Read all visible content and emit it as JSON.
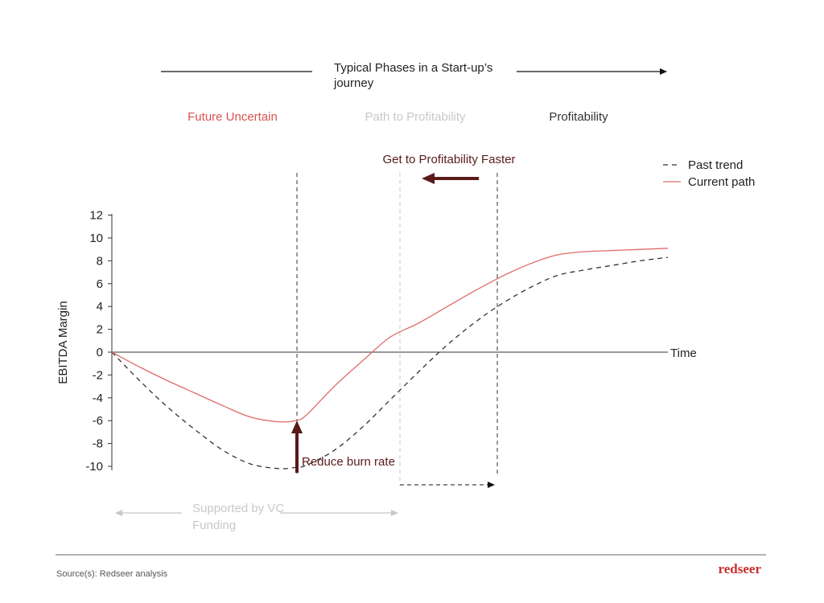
{
  "header": {
    "title_line1": "Typical Phases in a Start-up’s",
    "title_line2": "journey"
  },
  "phases": [
    {
      "label": "Future Uncertain",
      "color": "#d9534f"
    },
    {
      "label": "Path to Profitability",
      "color": "#c8c8c8"
    },
    {
      "label": "Profitability",
      "color": "#333333"
    }
  ],
  "annotations": {
    "faster": "Get to Profitability Faster",
    "burn": "Reduce burn rate",
    "vc_line1": "Supported by VC",
    "vc_line2": "Funding"
  },
  "footer": {
    "source": "Source(s): Redseer analysis",
    "brand": "redseer"
  },
  "colors": {
    "current": "#e06b6b",
    "past": "#333333",
    "accent_dark": "#5a1a1a",
    "muted": "#c8c8c8",
    "brand": "#c9302c"
  },
  "chart_data": {
    "type": "line",
    "title": "",
    "xlabel": "Time",
    "ylabel": "EBITDA Margin",
    "ylim": [
      -10,
      12
    ],
    "yticks": [
      12,
      10,
      8,
      6,
      4,
      2,
      0,
      -2,
      -4,
      -6,
      -8,
      -10
    ],
    "legend_position": "top-right",
    "series": [
      {
        "name": "Past trend",
        "style": "dashed",
        "x": [
          0,
          0.05,
          0.1,
          0.15,
          0.2,
          0.25,
          0.3,
          0.33,
          0.35,
          0.4,
          0.45,
          0.5,
          0.55,
          0.6,
          0.65,
          0.7,
          0.75,
          0.8,
          0.85,
          0.9,
          0.95,
          1.0
        ],
        "values": [
          0,
          -2.5,
          -4.8,
          -6.8,
          -8.6,
          -9.8,
          -10.2,
          -10.1,
          -9.9,
          -8.6,
          -6.6,
          -4.2,
          -1.8,
          0.5,
          2.5,
          4.2,
          5.6,
          6.7,
          7.2,
          7.6,
          8.0,
          8.3
        ]
      },
      {
        "name": "Current path",
        "style": "solid",
        "x": [
          0,
          0.05,
          0.1,
          0.15,
          0.2,
          0.25,
          0.3,
          0.33,
          0.35,
          0.4,
          0.45,
          0.5,
          0.55,
          0.6,
          0.65,
          0.7,
          0.75,
          0.8,
          0.85,
          0.9,
          0.95,
          1.0
        ],
        "values": [
          0,
          -1.3,
          -2.5,
          -3.6,
          -4.7,
          -5.7,
          -6.1,
          -6.0,
          -5.5,
          -3.0,
          -0.8,
          1.3,
          2.5,
          3.9,
          5.3,
          6.6,
          7.7,
          8.5,
          8.8,
          8.9,
          9.0,
          9.1
        ]
      }
    ]
  }
}
